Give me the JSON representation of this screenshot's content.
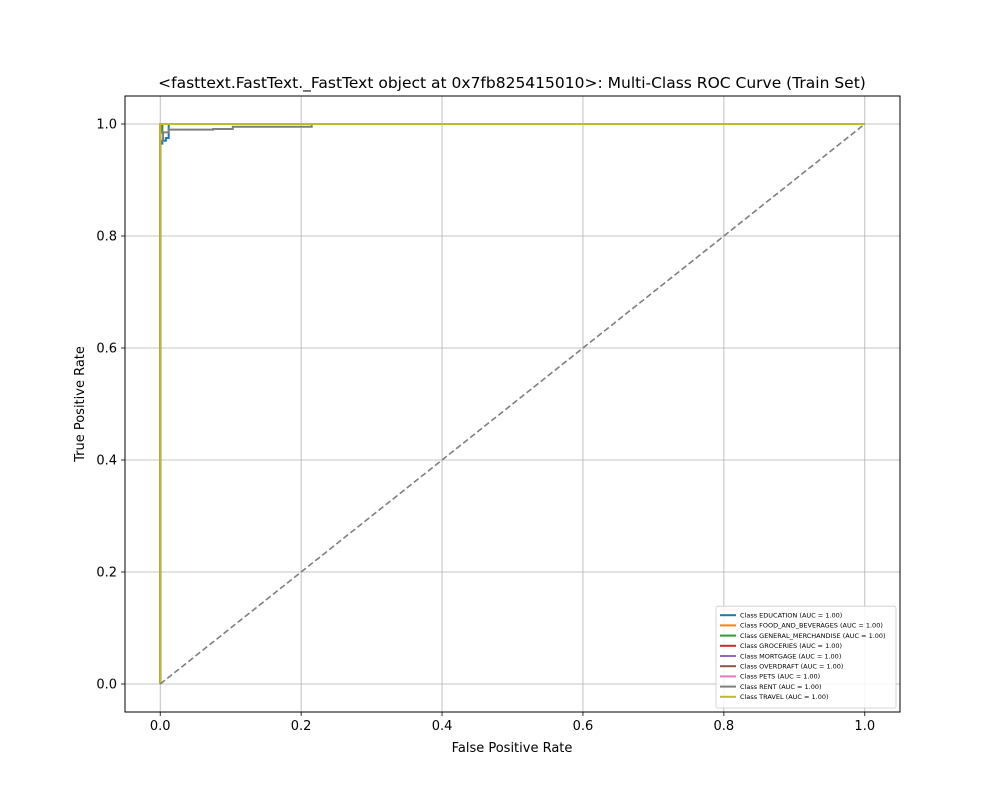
{
  "chart_data": {
    "type": "line",
    "title": "<fasttext.FastText._FastText object at 0x7fb825415010>: Multi-Class ROC Curve (Train Set)",
    "xlabel": "False Positive Rate",
    "ylabel": "True Positive Rate",
    "xlim": [
      -0.05,
      1.05
    ],
    "ylim": [
      -0.05,
      1.05
    ],
    "xticks": [
      "0.0",
      "0.2",
      "0.4",
      "0.6",
      "0.8",
      "1.0"
    ],
    "yticks": [
      "0.0",
      "0.2",
      "0.4",
      "0.6",
      "0.8",
      "1.0"
    ],
    "grid": true,
    "legend_position": "lower-right",
    "series": [
      {
        "name": "Class EDUCATION (AUC = 1.00)",
        "color": "#1f77b4",
        "x": [
          0,
          0,
          0.003,
          0.003,
          0.008,
          0.008,
          0.012,
          0.012,
          1.0
        ],
        "y": [
          0,
          0.965,
          0.965,
          0.97,
          0.97,
          0.975,
          0.975,
          1.0,
          1.0
        ]
      },
      {
        "name": "Class FOOD_AND_BEVERAGES (AUC = 1.00)",
        "color": "#ff7f0e",
        "x": [
          0,
          0,
          0.002,
          0.002,
          1.0
        ],
        "y": [
          0,
          0.99,
          0.99,
          1.0,
          1.0
        ]
      },
      {
        "name": "Class GENERAL_MERCHANDISE (AUC = 1.00)",
        "color": "#2ca02c",
        "x": [
          0,
          0,
          0.003,
          0.003,
          1.0
        ],
        "y": [
          0,
          0.985,
          0.985,
          1.0,
          1.0
        ]
      },
      {
        "name": "Class GROCERIES (AUC = 1.00)",
        "color": "#d62728",
        "x": [
          0,
          0,
          0.001,
          0.001,
          1.0
        ],
        "y": [
          0,
          0.995,
          0.995,
          1.0,
          1.0
        ]
      },
      {
        "name": "Class MORTGAGE (AUC = 1.00)",
        "color": "#9467bd",
        "x": [
          0,
          0,
          1.0
        ],
        "y": [
          0,
          1.0,
          1.0
        ]
      },
      {
        "name": "Class OVERDRAFT (AUC = 1.00)",
        "color": "#8c564b",
        "x": [
          0,
          0,
          0.002,
          0.002,
          1.0
        ],
        "y": [
          0,
          0.993,
          0.993,
          1.0,
          1.0
        ]
      },
      {
        "name": "Class PETS (AUC = 1.00)",
        "color": "#e377c2",
        "x": [
          0,
          0,
          1.0
        ],
        "y": [
          0,
          1.0,
          1.0
        ]
      },
      {
        "name": "Class RENT (AUC = 1.00)",
        "color": "#7f7f7f",
        "x": [
          0,
          0,
          0.004,
          0.004,
          0.012,
          0.012,
          0.075,
          0.075,
          0.103,
          0.103,
          0.215,
          0.215,
          1.0
        ],
        "y": [
          0,
          0.97,
          0.97,
          0.985,
          0.985,
          0.99,
          0.99,
          0.991,
          0.991,
          0.995,
          0.995,
          1.0,
          1.0
        ]
      },
      {
        "name": "Class TRAVEL (AUC = 1.00)",
        "color": "#bcbd22",
        "x": [
          0,
          0,
          1.0
        ],
        "y": [
          0,
          1.0,
          1.0
        ]
      }
    ],
    "reference_line": {
      "x": [
        0,
        1
      ],
      "y": [
        0,
        1
      ],
      "color": "#7f7f7f",
      "style": "dashed"
    }
  }
}
